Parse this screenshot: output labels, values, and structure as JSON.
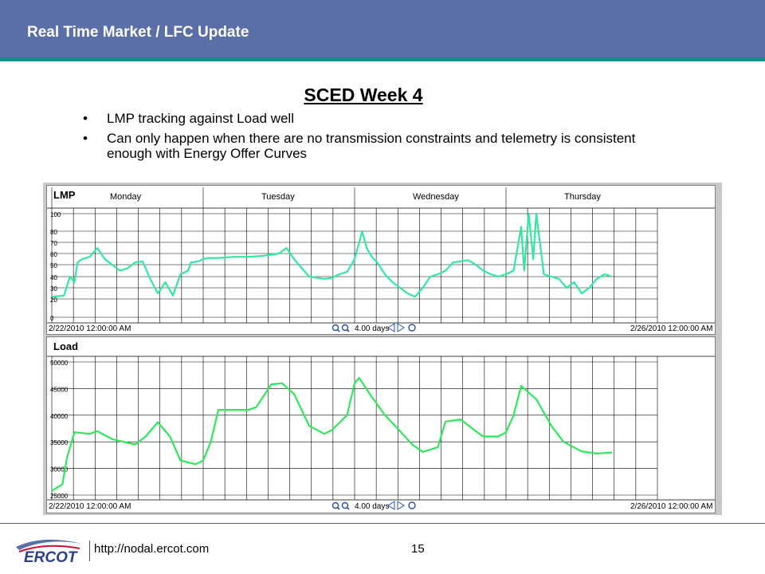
{
  "header": {
    "title": "Real Time Market / LFC Update"
  },
  "slide": {
    "title": "SCED Week 4",
    "bullets": [
      "LMP tracking against Load well",
      "Can only happen when there are no transmission constraints and telemetry is consistent enough with Energy Offer Curves"
    ]
  },
  "footer": {
    "url": "http://nodal.ercot.com",
    "page": "15",
    "logo_text": "ERCOT"
  },
  "colors": {
    "header_bg": "#5a6ea8",
    "header_rule": "#138d8c",
    "series": "#2ee85a",
    "lmp_series": "#30e8a0"
  },
  "chart_data": [
    {
      "type": "line",
      "title": "LMP",
      "day_labels": [
        "Monday",
        "Tuesday",
        "Wednesday",
        "Thursday"
      ],
      "yticks": [
        "100",
        "80",
        "70",
        "60",
        "50",
        "40",
        "30",
        "20",
        "0"
      ],
      "ylim": [
        0,
        100
      ],
      "xlim_days": [
        0,
        4
      ],
      "start_label": "2/22/2010 12:00:00 AM",
      "end_label": "2/26/2010 12:00:00 AM",
      "span_label": "4.00 days",
      "grid": true,
      "series": [
        {
          "x": [
            0,
            0.08,
            0.12,
            0.15,
            0.17,
            0.2,
            0.25,
            0.3,
            0.35,
            0.45,
            0.5,
            0.55,
            0.6,
            0.65,
            0.7,
            0.75,
            0.8,
            0.85,
            0.9,
            0.92,
            0.97,
            1.0,
            1.03,
            1.1,
            1.2,
            1.3,
            1.4,
            1.5,
            1.55,
            1.6,
            1.7,
            1.8,
            1.85,
            1.9,
            1.95,
            2.0,
            2.05,
            2.08,
            2.1,
            2.12,
            2.15,
            2.2,
            2.25,
            2.3,
            2.35,
            2.4,
            2.45,
            2.5,
            2.55,
            2.6,
            2.65,
            2.7,
            2.75,
            2.8,
            2.85,
            2.9,
            2.95,
            3.0,
            3.05,
            3.1,
            3.12,
            3.15,
            3.18,
            3.2,
            3.25,
            3.3,
            3.35,
            3.4,
            3.45,
            3.5,
            3.55,
            3.6,
            3.65,
            3.7
          ],
          "y": [
            22,
            23,
            40,
            35,
            52,
            55,
            57,
            65,
            55,
            45,
            47,
            52,
            53,
            38,
            25,
            35,
            23,
            42,
            45,
            52,
            53,
            55,
            56,
            56,
            57,
            57,
            58,
            60,
            65,
            55,
            40,
            38,
            39,
            42,
            44,
            55,
            80,
            65,
            60,
            56,
            52,
            42,
            35,
            30,
            25,
            22,
            30,
            40,
            42,
            45,
            52,
            53,
            54,
            50,
            45,
            42,
            40,
            42,
            45,
            85,
            45,
            100,
            55,
            100,
            42,
            40,
            38,
            30,
            35,
            25,
            30,
            38,
            42,
            40
          ]
        }
      ]
    },
    {
      "type": "line",
      "title": "Load",
      "yticks": [
        "50000",
        "45000",
        "40000",
        "35000",
        "30000",
        "25000"
      ],
      "ylim": [
        25000,
        50000
      ],
      "xlim_days": [
        0,
        4
      ],
      "start_label": "2/22/2010 12:00:00 AM",
      "end_label": "2/26/2010 12:00:00 AM",
      "span_label": "4.00 days",
      "grid": true,
      "series": [
        {
          "x": [
            0,
            0.07,
            0.1,
            0.15,
            0.25,
            0.3,
            0.4,
            0.55,
            0.62,
            0.7,
            0.78,
            0.85,
            0.95,
            1.0,
            1.05,
            1.1,
            1.3,
            1.35,
            1.45,
            1.52,
            1.6,
            1.7,
            1.8,
            1.85,
            1.95,
            2.0,
            2.03,
            2.1,
            2.2,
            2.3,
            2.38,
            2.45,
            2.55,
            2.6,
            2.7,
            2.8,
            2.85,
            2.95,
            3.0,
            3.05,
            3.1,
            3.2,
            3.3,
            3.38,
            3.5,
            3.6,
            3.7
          ],
          "y": [
            25800,
            27000,
            32000,
            36800,
            36500,
            37000,
            35500,
            34500,
            36000,
            38700,
            36000,
            31500,
            30800,
            31500,
            35000,
            41000,
            41000,
            41500,
            45800,
            46000,
            44000,
            38000,
            36500,
            37200,
            40000,
            46000,
            47000,
            44000,
            40000,
            37000,
            34500,
            33100,
            34000,
            38800,
            39200,
            37000,
            36000,
            36000,
            36800,
            40000,
            45500,
            43000,
            38000,
            35000,
            33200,
            32800,
            33000
          ]
        }
      ]
    }
  ]
}
